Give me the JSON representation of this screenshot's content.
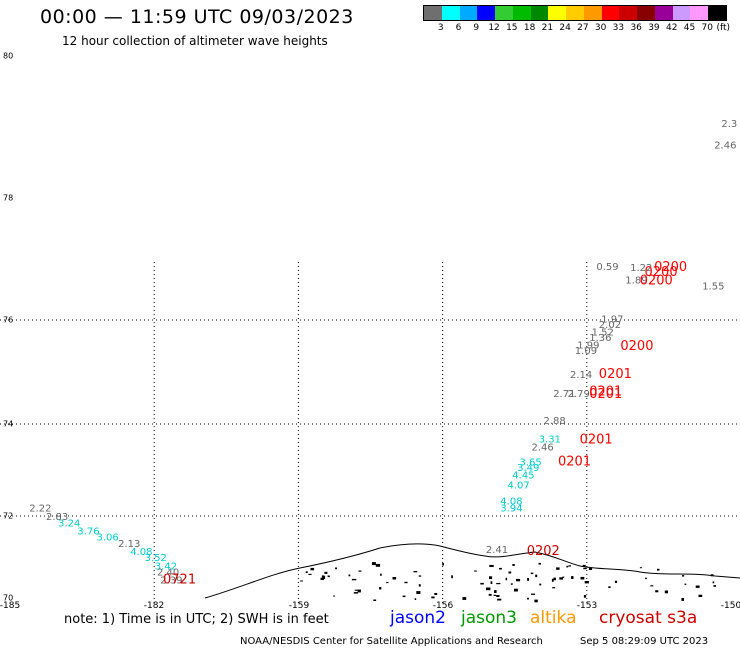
{
  "title": "00:00 — 11:59 UTC 09/03/2023",
  "subtitle": "12 hour collection of altimeter wave heights",
  "scale": {
    "colors": [
      "#6f6f6f",
      "#00ffff",
      "#00aaff",
      "#0000ff",
      "#33cc33",
      "#00bb00",
      "#008800",
      "#ffff00",
      "#ffcc00",
      "#ff9900",
      "#ff0000",
      "#cc0000",
      "#880000",
      "#990099",
      "#cc99ff",
      "#ff99ff",
      "#000000"
    ],
    "labels": [
      "3",
      "6",
      "9",
      "12",
      "15",
      "18",
      "21",
      "24",
      "27",
      "30",
      "33",
      "36",
      "39",
      "42",
      "45",
      "70",
      "(ft)"
    ]
  },
  "y_axis_labels": [
    "80",
    "78",
    "76",
    "74",
    "72",
    "70"
  ],
  "x_axis_labels": [
    "-185",
    "-182",
    "-159",
    "-156",
    "-153",
    "-150"
  ],
  "note": "note: 1) Time is in UTC; 2) SWH is in feet",
  "satellites": {
    "jason2": "jason2",
    "jason3": "jason3",
    "altika": "altika",
    "cryosat": "cryosat s3a"
  },
  "footer": {
    "credit": "NOAA/NESDIS Center for Satellite Applications and Research",
    "timestamp": "Sep  5 08:29:09 UTC 2023"
  },
  "observations": [
    {
      "text": "2.22",
      "color": "#666666",
      "lon": -184.6,
      "lat": 72.1
    },
    {
      "text": "2.83",
      "color": "#666666",
      "lon": -184.25,
      "lat": 71.9
    },
    {
      "text": "3.24",
      "color": "#00cccc",
      "lon": -184.0,
      "lat": 71.75
    },
    {
      "text": "3.76",
      "color": "#00cccc",
      "lon": -183.6,
      "lat": 71.55
    },
    {
      "text": "3.06",
      "color": "#00cccc",
      "lon": -183.2,
      "lat": 71.4
    },
    {
      "text": "2.13",
      "color": "#666666",
      "lon": -182.75,
      "lat": 71.25
    },
    {
      "text": "4.08",
      "color": "#00cccc",
      "lon": -182.5,
      "lat": 71.05
    },
    {
      "text": "3.52",
      "color": "#00cccc",
      "lon": -182.2,
      "lat": 70.9
    },
    {
      "text": "3.42",
      "color": "#00cccc",
      "lon": -181.9,
      "lat": 70.7
    },
    {
      "text": "2.40",
      "color": "#666666",
      "lon": -181.55,
      "lat": 70.55
    },
    {
      "text": "2.39",
      "color": "#666666",
      "lon": -181.05,
      "lat": 70.35
    },
    {
      "text": "0721",
      "color": "#cc0000",
      "lon": -180.6,
      "lat": 70.35
    },
    {
      "text": "2.3",
      "color": "#666666",
      "lon": -150.2,
      "lat": 79.0
    },
    {
      "text": "2.46",
      "color": "#666666",
      "lon": -150.35,
      "lat": 78.7
    },
    {
      "text": "0.59",
      "color": "#666666",
      "lon": -152.8,
      "lat": 76.82
    },
    {
      "text": "1.22",
      "color": "#666666",
      "lon": -152.1,
      "lat": 76.8
    },
    {
      "text": "1.89",
      "color": "#666666",
      "lon": -152.2,
      "lat": 76.6
    },
    {
      "text": "0200",
      "color": "#ff0000",
      "lon": -151.6,
      "lat": 76.8
    },
    {
      "text": "0200",
      "color": "#ff0000",
      "lon": -151.8,
      "lat": 76.72
    },
    {
      "text": "0200",
      "color": "#ff0000",
      "lon": -151.9,
      "lat": 76.58
    },
    {
      "text": "1.55",
      "color": "#666666",
      "lon": -150.6,
      "lat": 76.5
    },
    {
      "text": "1.97",
      "color": "#666666",
      "lon": -152.7,
      "lat": 75.95
    },
    {
      "text": "2.02",
      "color": "#666666",
      "lon": -152.75,
      "lat": 75.85
    },
    {
      "text": "1.52",
      "color": "#666666",
      "lon": -152.9,
      "lat": 75.7
    },
    {
      "text": "1.36",
      "color": "#666666",
      "lon": -152.95,
      "lat": 75.6
    },
    {
      "text": "1.99",
      "color": "#666666",
      "lon": -153.2,
      "lat": 75.45
    },
    {
      "text": "1.09",
      "color": "#666666",
      "lon": -153.25,
      "lat": 75.35
    },
    {
      "text": "0200",
      "color": "#ff0000",
      "lon": -152.3,
      "lat": 75.42
    },
    {
      "text": "2.14",
      "color": "#666666",
      "lon": -153.35,
      "lat": 74.88
    },
    {
      "text": "0201",
      "color": "#ff0000",
      "lon": -152.75,
      "lat": 74.88
    },
    {
      "text": "2.71",
      "color": "#666666",
      "lon": -153.7,
      "lat": 74.52
    },
    {
      "text": "2.79",
      "color": "#666666",
      "lon": -153.4,
      "lat": 74.52
    },
    {
      "text": "0201",
      "color": "#ff0000",
      "lon": -152.95,
      "lat": 74.55
    },
    {
      "text": "0201",
      "color": "#ff0000",
      "lon": -152.95,
      "lat": 74.5
    },
    {
      "text": "2.88",
      "color": "#666666",
      "lon": -153.9,
      "lat": 74.0
    },
    {
      "text": "3.31",
      "color": "#00cccc",
      "lon": -154.0,
      "lat": 73.6
    },
    {
      "text": "0201",
      "color": "#ff0000",
      "lon": -153.15,
      "lat": 73.58
    },
    {
      "text": "2.46",
      "color": "#666666",
      "lon": -154.15,
      "lat": 73.42
    },
    {
      "text": "3.65",
      "color": "#00cccc",
      "lon": -154.4,
      "lat": 73.1
    },
    {
      "text": "0201",
      "color": "#ff0000",
      "lon": -153.6,
      "lat": 73.1
    },
    {
      "text": "3.49",
      "color": "#00cccc",
      "lon": -154.45,
      "lat": 72.98
    },
    {
      "text": "4.45",
      "color": "#00cccc",
      "lon": -154.55,
      "lat": 72.82
    },
    {
      "text": "4.07",
      "color": "#00cccc",
      "lon": -154.65,
      "lat": 72.6
    },
    {
      "text": "4.08",
      "color": "#00cccc",
      "lon": -154.8,
      "lat": 72.25
    },
    {
      "text": "3.94",
      "color": "#00cccc",
      "lon": -154.8,
      "lat": 72.1
    },
    {
      "text": "2.41",
      "color": "#666666",
      "lon": -155.1,
      "lat": 71.1
    },
    {
      "text": "0202",
      "color": "#cc0000",
      "lon": -154.25,
      "lat": 71.05
    }
  ]
}
